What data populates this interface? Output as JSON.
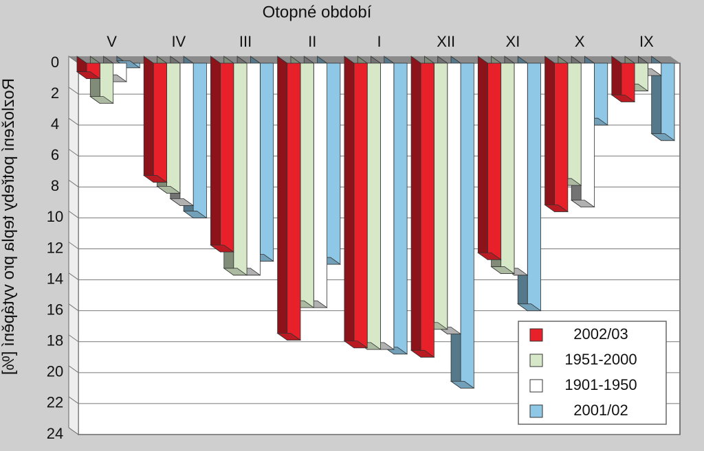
{
  "chart_data": {
    "type": "bar",
    "title": "Otopné období",
    "ylabel": "Rozložení potřeby tepla pro vytápění [%]",
    "xlabel": "",
    "categories": [
      "IX",
      "X",
      "XI",
      "XII",
      "I",
      "II",
      "III",
      "IV",
      "V"
    ],
    "ylim": [
      0,
      24
    ],
    "yticks": [
      0,
      2,
      4,
      6,
      8,
      10,
      12,
      14,
      16,
      18,
      20,
      22,
      24
    ],
    "y_inverted": true,
    "mirrored": true,
    "grid": true,
    "legend_position": "bottom-right",
    "series": [
      {
        "name": "2001/02",
        "color": "#8ec8e6",
        "values": [
          5.0,
          4.0,
          16.0,
          21.0,
          18.8,
          13.0,
          12.8,
          10.0,
          0.3
        ]
      },
      {
        "name": "1901-1950",
        "color": "#ffffff",
        "values": [
          0.8,
          9.3,
          13.7,
          17.5,
          18.5,
          15.8,
          13.7,
          9.2,
          1.2
        ]
      },
      {
        "name": "1951-2000",
        "color": "#d6e8c8",
        "values": [
          1.8,
          7.9,
          13.6,
          17.2,
          18.5,
          15.8,
          13.7,
          8.4,
          2.6
        ]
      },
      {
        "name": "2002/03",
        "color": "#e8202a",
        "values": [
          2.5,
          9.6,
          12.7,
          19.0,
          18.4,
          17.9,
          12.2,
          7.7,
          1.0
        ]
      }
    ]
  }
}
